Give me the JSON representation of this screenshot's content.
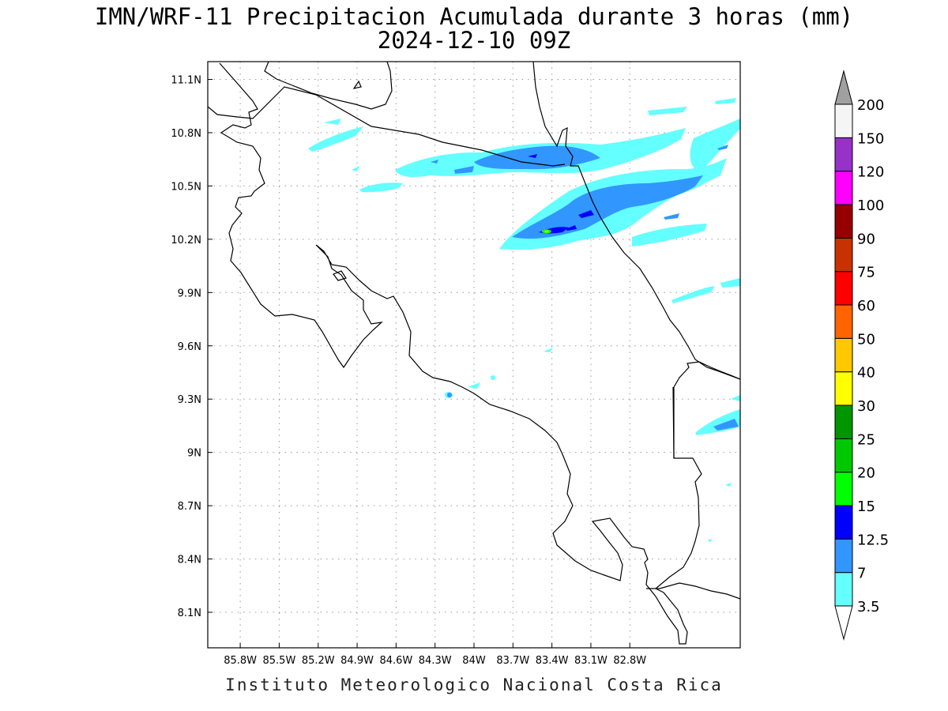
{
  "title_line1": "IMN/WRF-11 Precipitacion Acumulada durante 3 horas (mm)",
  "title_line2": "2024-12-10 09Z",
  "footer": "Instituto Meteorologico Nacional Costa Rica",
  "map": {
    "lon_range": [
      -86.05,
      -81.95
    ],
    "lat_range": [
      7.9,
      11.2
    ],
    "lon_ticks": [
      {
        "value": -85.8,
        "label": "85.8W"
      },
      {
        "value": -85.5,
        "label": "85.5W"
      },
      {
        "value": -85.2,
        "label": "85.2W"
      },
      {
        "value": -84.9,
        "label": "84.9W"
      },
      {
        "value": -84.6,
        "label": "84.6W"
      },
      {
        "value": -84.3,
        "label": "84.3W"
      },
      {
        "value": -84.0,
        "label": "84W"
      },
      {
        "value": -83.7,
        "label": "83.7W"
      },
      {
        "value": -83.4,
        "label": "83.4W"
      },
      {
        "value": -83.1,
        "label": "83.1W"
      },
      {
        "value": -82.8,
        "label": "82.8W"
      }
    ],
    "lat_ticks": [
      {
        "value": 11.1,
        "label": "11.1N"
      },
      {
        "value": 10.8,
        "label": "10.8N"
      },
      {
        "value": 10.5,
        "label": "10.5N"
      },
      {
        "value": 10.2,
        "label": "10.2N"
      },
      {
        "value": 9.9,
        "label": "9.9N"
      },
      {
        "value": 9.6,
        "label": "9.6N"
      },
      {
        "value": 9.3,
        "label": "9.3N"
      },
      {
        "value": 9.0,
        "label": "9N"
      },
      {
        "value": 8.7,
        "label": "8.7N"
      },
      {
        "value": 8.4,
        "label": "8.4N"
      },
      {
        "value": 8.1,
        "label": "8.1N"
      }
    ],
    "grid_color": "#9a9a9a",
    "coastline_color": "#000000"
  },
  "colorbar": {
    "levels": [
      "3.5",
      "7",
      "12.5",
      "15",
      "20",
      "25",
      "30",
      "40",
      "50",
      "60",
      "75",
      "90",
      "100",
      "120",
      "150",
      "200"
    ],
    "colors": [
      "#64ffff",
      "#3296ff",
      "#0000ff",
      "#00ff00",
      "#00c800",
      "#009600",
      "#ffff00",
      "#ffc800",
      "#ff6400",
      "#ff0000",
      "#c83200",
      "#960000",
      "#ff00ff",
      "#9632c8",
      "#f5f5f5"
    ],
    "under_color": "#ffffff",
    "over_color": "#a0a0a0"
  },
  "precip_colors": {
    "c3_5": "#64ffff",
    "c7": "#3296ff",
    "c12_5": "#0000ff",
    "c15": "#00ff00",
    "c30": "#ffff00"
  }
}
